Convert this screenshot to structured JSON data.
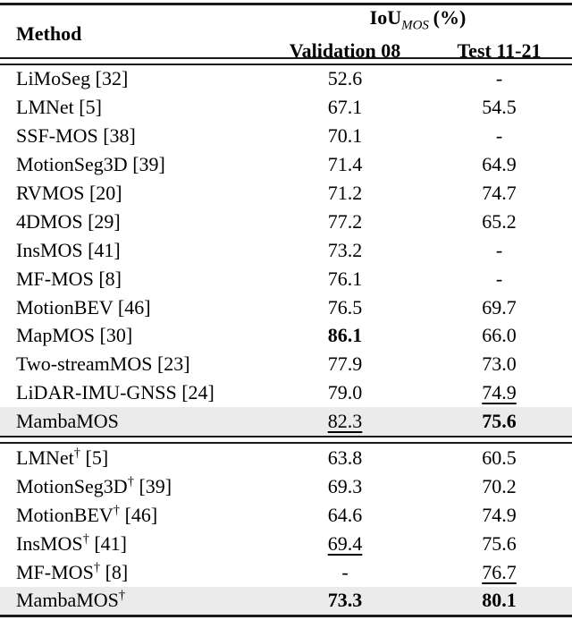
{
  "header": {
    "method_label": "Method",
    "group_label_main": "IoU",
    "group_label_sub": "MOS",
    "group_label_suffix": "(%)",
    "col_validation": "Validation 08",
    "col_test": "Test 11-21"
  },
  "styles": {
    "highlight_color": "#ebebeb",
    "rule_color": "#1a1a1a"
  },
  "sections": [
    {
      "rows": [
        {
          "method": "LiMoSeg",
          "dagger": "",
          "ref": "[32]",
          "highlight": false,
          "validation": {
            "text": "52.6",
            "bold": false,
            "underline": false
          },
          "test": {
            "text": "-",
            "bold": false,
            "underline": false
          }
        },
        {
          "method": "LMNet",
          "dagger": "",
          "ref": "[5]",
          "highlight": false,
          "validation": {
            "text": "67.1",
            "bold": false,
            "underline": false
          },
          "test": {
            "text": "54.5",
            "bold": false,
            "underline": false
          }
        },
        {
          "method": "SSF-MOS",
          "dagger": "",
          "ref": "[38]",
          "highlight": false,
          "validation": {
            "text": "70.1",
            "bold": false,
            "underline": false
          },
          "test": {
            "text": "-",
            "bold": false,
            "underline": false
          }
        },
        {
          "method": "MotionSeg3D",
          "dagger": "",
          "ref": "[39]",
          "highlight": false,
          "validation": {
            "text": "71.4",
            "bold": false,
            "underline": false
          },
          "test": {
            "text": "64.9",
            "bold": false,
            "underline": false
          }
        },
        {
          "method": "RVMOS",
          "dagger": "",
          "ref": "[20]",
          "highlight": false,
          "validation": {
            "text": "71.2",
            "bold": false,
            "underline": false
          },
          "test": {
            "text": "74.7",
            "bold": false,
            "underline": false
          }
        },
        {
          "method": "4DMOS",
          "dagger": "",
          "ref": "[29]",
          "highlight": false,
          "validation": {
            "text": "77.2",
            "bold": false,
            "underline": false
          },
          "test": {
            "text": "65.2",
            "bold": false,
            "underline": false
          }
        },
        {
          "method": "InsMOS",
          "dagger": "",
          "ref": "[41]",
          "highlight": false,
          "validation": {
            "text": "73.2",
            "bold": false,
            "underline": false
          },
          "test": {
            "text": "-",
            "bold": false,
            "underline": false
          }
        },
        {
          "method": "MF-MOS",
          "dagger": "",
          "ref": "[8]",
          "highlight": false,
          "validation": {
            "text": "76.1",
            "bold": false,
            "underline": false
          },
          "test": {
            "text": "-",
            "bold": false,
            "underline": false
          }
        },
        {
          "method": "MotionBEV",
          "dagger": "",
          "ref": "[46]",
          "highlight": false,
          "validation": {
            "text": "76.5",
            "bold": false,
            "underline": false
          },
          "test": {
            "text": "69.7",
            "bold": false,
            "underline": false
          }
        },
        {
          "method": "MapMOS",
          "dagger": "",
          "ref": "[30]",
          "highlight": false,
          "validation": {
            "text": "86.1",
            "bold": true,
            "underline": false
          },
          "test": {
            "text": "66.0",
            "bold": false,
            "underline": false
          }
        },
        {
          "method": "Two-streamMOS",
          "dagger": "",
          "ref": "[23]",
          "highlight": false,
          "validation": {
            "text": "77.9",
            "bold": false,
            "underline": false
          },
          "test": {
            "text": "73.0",
            "bold": false,
            "underline": false
          }
        },
        {
          "method": "LiDAR-IMU-GNSS",
          "dagger": "",
          "ref": "[24]",
          "highlight": false,
          "validation": {
            "text": "79.0",
            "bold": false,
            "underline": false
          },
          "test": {
            "text": "74.9",
            "bold": false,
            "underline": true
          }
        },
        {
          "method": "MambaMOS",
          "dagger": "",
          "ref": "",
          "highlight": true,
          "validation": {
            "text": "82.3",
            "bold": false,
            "underline": true
          },
          "test": {
            "text": "75.6",
            "bold": true,
            "underline": false
          }
        }
      ]
    },
    {
      "rows": [
        {
          "method": "LMNet",
          "dagger": "†",
          "ref": "[5]",
          "highlight": false,
          "validation": {
            "text": "63.8",
            "bold": false,
            "underline": false
          },
          "test": {
            "text": "60.5",
            "bold": false,
            "underline": false
          }
        },
        {
          "method": "MotionSeg3D",
          "dagger": "†",
          "ref": "[39]",
          "highlight": false,
          "validation": {
            "text": "69.3",
            "bold": false,
            "underline": false
          },
          "test": {
            "text": "70.2",
            "bold": false,
            "underline": false
          }
        },
        {
          "method": "MotionBEV",
          "dagger": "†",
          "ref": "[46]",
          "highlight": false,
          "validation": {
            "text": "64.6",
            "bold": false,
            "underline": false
          },
          "test": {
            "text": "74.9",
            "bold": false,
            "underline": false
          }
        },
        {
          "method": "InsMOS",
          "dagger": "†",
          "ref": "[41]",
          "highlight": false,
          "validation": {
            "text": "69.4",
            "bold": false,
            "underline": true
          },
          "test": {
            "text": "75.6",
            "bold": false,
            "underline": false
          }
        },
        {
          "method": "MF-MOS",
          "dagger": "†",
          "ref": "[8]",
          "highlight": false,
          "validation": {
            "text": "-",
            "bold": false,
            "underline": false
          },
          "test": {
            "text": "76.7",
            "bold": false,
            "underline": true
          }
        },
        {
          "method": "MambaMOS",
          "dagger": "†",
          "ref": "",
          "highlight": true,
          "validation": {
            "text": "73.3",
            "bold": true,
            "underline": false
          },
          "test": {
            "text": "80.1",
            "bold": true,
            "underline": false
          }
        }
      ]
    }
  ]
}
